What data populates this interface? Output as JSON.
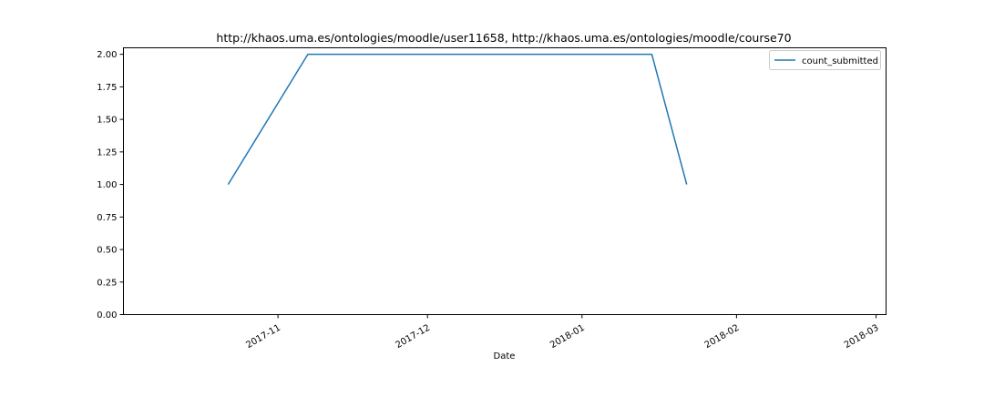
{
  "chart_data": {
    "type": "line",
    "title": "http://khaos.uma.es/ontologies/moodle/user11658, http://khaos.uma.es/ontologies/moodle/course70",
    "xlabel": "Date",
    "ylabel": "",
    "x_type": "date",
    "xlim": [
      "2017-10-01",
      "2018-03-03"
    ],
    "ylim": [
      0,
      2.05
    ],
    "x_ticks": [
      {
        "date": "2017-11-01",
        "label": "2017-11"
      },
      {
        "date": "2017-12-01",
        "label": "2017-12"
      },
      {
        "date": "2018-01-01",
        "label": "2018-01"
      },
      {
        "date": "2018-02-01",
        "label": "2018-02"
      },
      {
        "date": "2018-03-01",
        "label": "2018-03"
      }
    ],
    "y_ticks": [
      0,
      0.25,
      0.5,
      0.75,
      1.0,
      1.25,
      1.5,
      1.75,
      2.0
    ],
    "y_tick_labels": [
      "0.00",
      "0.25",
      "0.50",
      "0.75",
      "1.00",
      "1.25",
      "1.50",
      "1.75",
      "2.00"
    ],
    "series": [
      {
        "name": "count_submitted",
        "color": "#1f77b4",
        "x": [
          "2017-10-22",
          "2017-11-07",
          "2018-01-15",
          "2018-01-22"
        ],
        "y": [
          1,
          2,
          2,
          1
        ]
      }
    ],
    "legend": {
      "position": "top-right"
    },
    "grid": false
  }
}
